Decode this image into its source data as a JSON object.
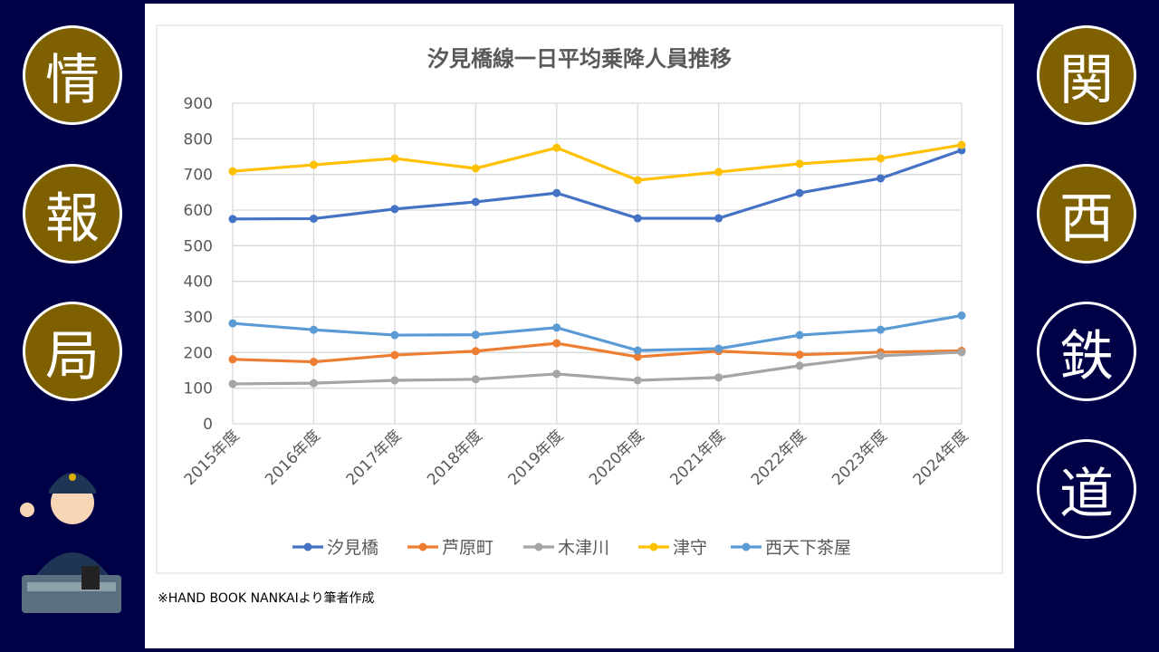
{
  "side": {
    "left": [
      "情",
      "報",
      "局"
    ],
    "right": [
      "関",
      "西",
      "鉄",
      "道"
    ]
  },
  "note": "※HAND BOOK NANKAIより筆者作成",
  "chart_data": {
    "type": "line",
    "title": "汐見橋線一日平均乗降人員推移",
    "xlabel": "",
    "ylabel": "",
    "ylim": [
      0,
      900
    ],
    "yticks": [
      0,
      100,
      200,
      300,
      400,
      500,
      600,
      700,
      800,
      900
    ],
    "grid": true,
    "legend": "bottom",
    "categories": [
      "2015年度",
      "2016年度",
      "2017年度",
      "2018年度",
      "2019年度",
      "2020年度",
      "2021年度",
      "2022年度",
      "2023年度",
      "2024年度"
    ],
    "series": [
      {
        "name": "汐見橋",
        "color": "#4472c4",
        "values": [
          575,
          576,
          603,
          623,
          648,
          577,
          577,
          648,
          689,
          768
        ]
      },
      {
        "name": "芦原町",
        "color": "#ed7d31",
        "values": [
          181,
          174,
          193,
          204,
          226,
          188,
          204,
          194,
          201,
          205
        ]
      },
      {
        "name": "木津川",
        "color": "#a5a5a5",
        "values": [
          112,
          114,
          122,
          125,
          140,
          122,
          130,
          163,
          191,
          201
        ]
      },
      {
        "name": "津守",
        "color": "#ffc000",
        "values": [
          709,
          727,
          745,
          717,
          775,
          684,
          707,
          730,
          745,
          783
        ]
      },
      {
        "name": "西天下茶屋",
        "color": "#5b9bd5",
        "values": [
          282,
          264,
          249,
          250,
          270,
          206,
          211,
          249,
          264,
          304
        ]
      }
    ]
  }
}
